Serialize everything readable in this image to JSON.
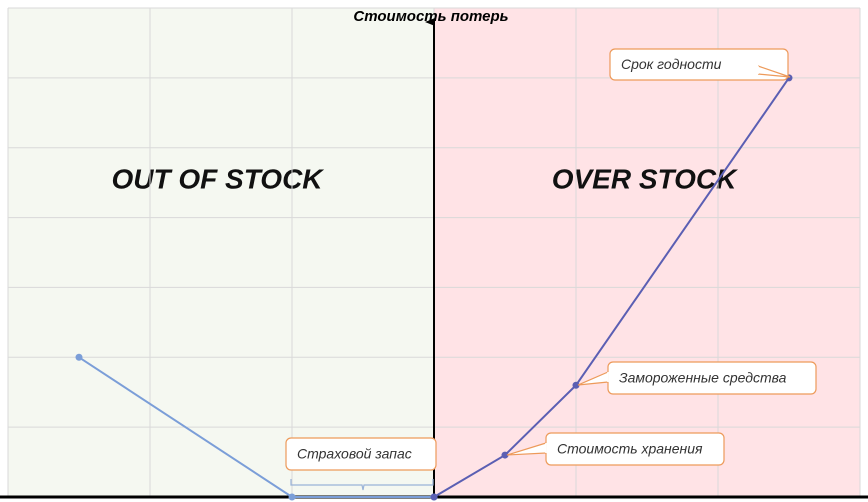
{
  "chart_data": {
    "type": "line",
    "y_axis_title": "Стоимость потерь",
    "regions": [
      "OUT OF STOCK",
      "OVER STOCK"
    ],
    "region_colors": [
      "#f5f8f1",
      "#ffe3e6"
    ],
    "xlim": [
      -3,
      3
    ],
    "ylim": [
      0,
      7
    ],
    "xticks": [
      -3,
      -2,
      -1,
      0,
      1,
      2,
      3
    ],
    "yticks": [
      0,
      1,
      2,
      3,
      4,
      5,
      6,
      7
    ],
    "grid": true,
    "series": [
      {
        "color": "#7b9ed8",
        "x": [
          -2.5,
          -1,
          0
        ],
        "values": [
          2,
          0,
          0
        ]
      },
      {
        "color": "#5b5fb3",
        "x": [
          0,
          0.5,
          1,
          2.5
        ],
        "values": [
          0,
          0.6,
          1.6,
          6
        ]
      }
    ],
    "annotations": [
      "Срок годности",
      "Замороженные средства",
      "Стоимость хранения",
      "Страховой запас"
    ]
  }
}
